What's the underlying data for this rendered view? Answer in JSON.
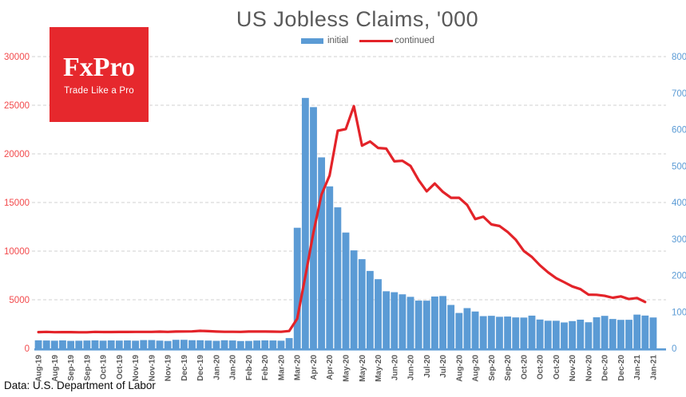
{
  "header": {
    "title": "US Jobless Claims, '000"
  },
  "legend": {
    "initial": "initial",
    "continued": "continued"
  },
  "branding": {
    "logo_text": "FxPro",
    "tagline": "Trade Like a Pro",
    "logo_bg": "#e6282d",
    "logo_text_color": "#ffffff"
  },
  "footer": {
    "source": "Data: U.S. Department of Labor"
  },
  "chart_data": {
    "type": "combo",
    "title": "US Jobless Claims, '000",
    "subtitle": "",
    "legend_position": "top-center",
    "grid": {
      "visible": true,
      "style": "dashed",
      "color": "#d9d9d9"
    },
    "axis_line_color": "#5b9bd5",
    "x_label_color": "#595959",
    "tick_every_n_bars": 2,
    "x_tick_labels": [
      "Aug-19",
      "Aug-19",
      "Sep-19",
      "Sep-19",
      "Oct-19",
      "Oct-19",
      "Nov-19",
      "Nov-19",
      "Nov-19",
      "Dec-19",
      "Dec-19",
      "Jan-20",
      "Jan-20",
      "Feb-20",
      "Feb-20",
      "Mar-20",
      "Mar-20",
      "Apr-20",
      "Apr-20",
      "May-20",
      "May-20",
      "May-20",
      "Jun-20",
      "Jun-20",
      "Jul-20",
      "Jul-20",
      "Aug-20",
      "Aug-20",
      "Sep-20",
      "Sep-20",
      "Oct-20",
      "Oct-20",
      "Oct-20",
      "Nov-20",
      "Nov-20",
      "Dec-20",
      "Dec-20",
      "Jan-21",
      "Jan-21"
    ],
    "axes": {
      "left": {
        "min": 0,
        "max": 30000,
        "step": 5000,
        "label_color": "#f2494b",
        "series": "continued"
      },
      "right": {
        "min": 0,
        "max": 8000,
        "step": 1000,
        "label_color": "#5b9bd5",
        "series": "initial"
      }
    },
    "series": [
      {
        "name": "initial",
        "type": "bar",
        "axis": "right",
        "color": "#5b9bd5",
        "values": [
          221,
          216,
          211,
          219,
          206,
          210,
          215,
          220,
          212,
          218,
          214,
          218,
          211,
          227,
          228,
          213,
          203,
          235,
          235,
          224,
          223,
          214,
          207,
          223,
          217,
          201,
          204,
          215,
          220,
          217,
          211,
          282,
          3307,
          6867,
          6615,
          5237,
          4442,
          3867,
          3176,
          2687,
          2446,
          2123,
          1897,
          1566,
          1540,
          1482,
          1413,
          1310,
          1308,
          1422,
          1435,
          1191,
          971,
          1104,
          1011,
          884,
          893,
          866,
          873,
          849,
          845,
          898,
          791,
          758,
          757,
          711,
          748,
          787,
          716,
          853,
          892,
          806,
          782,
          784,
          926,
          900,
          847
        ]
      },
      {
        "name": "continued",
        "type": "line",
        "axis": "left",
        "color": "#e32329",
        "values": [
          1674,
          1693,
          1662,
          1674,
          1674,
          1655,
          1653,
          1699,
          1684,
          1683,
          1691,
          1690,
          1693,
          1697,
          1695,
          1722,
          1693,
          1726,
          1737,
          1744,
          1803,
          1767,
          1732,
          1703,
          1703,
          1698,
          1726,
          1731,
          1729,
          1722,
          1702,
          1784,
          3059,
          7446,
          11914,
          15819,
          17776,
          22377,
          22548,
          24912,
          20841,
          21268,
          20606,
          20544,
          19231,
          19290,
          18760,
          17304,
          16151,
          16951,
          16090,
          15480,
          15486,
          14758,
          13292,
          13544,
          12747,
          12580,
          11979,
          11183,
          10018,
          9398,
          8544,
          7823,
          7222,
          6801,
          6370,
          6089,
          5527,
          5508,
          5403,
          5205,
          5347,
          5072,
          5181,
          4771
        ]
      }
    ],
    "x_range": {
      "start": "Aug-19",
      "end": "Jan-21",
      "frequency": "weekly"
    }
  }
}
